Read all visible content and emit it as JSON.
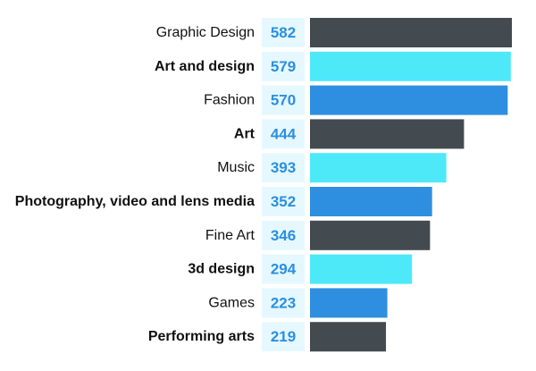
{
  "chart_data": {
    "type": "bar",
    "orientation": "horizontal",
    "title": "",
    "xlabel": "",
    "ylabel": "",
    "xlim": [
      0,
      582
    ],
    "grid": false,
    "legend": "none",
    "categories": [
      "Graphic Design",
      "Art and design",
      "Fashion",
      "Art",
      "Music",
      "Photography, video and lens media",
      "Fine Art",
      "3d design",
      "Games",
      "Performing arts"
    ],
    "values": [
      582,
      579,
      570,
      444,
      393,
      352,
      346,
      294,
      223,
      219
    ],
    "category_emphasis": [
      false,
      true,
      false,
      true,
      false,
      true,
      false,
      true,
      false,
      true
    ],
    "bar_colors": [
      "#434b51",
      "#4de9f9",
      "#2e8fe0",
      "#434b51",
      "#4de9f9",
      "#2e8fe0",
      "#434b51",
      "#4de9f9",
      "#2e8fe0",
      "#434b51"
    ],
    "value_box_color": "#e6f8ff",
    "value_text_color": "#2a8fe0",
    "category_text_color": "#111111"
  }
}
